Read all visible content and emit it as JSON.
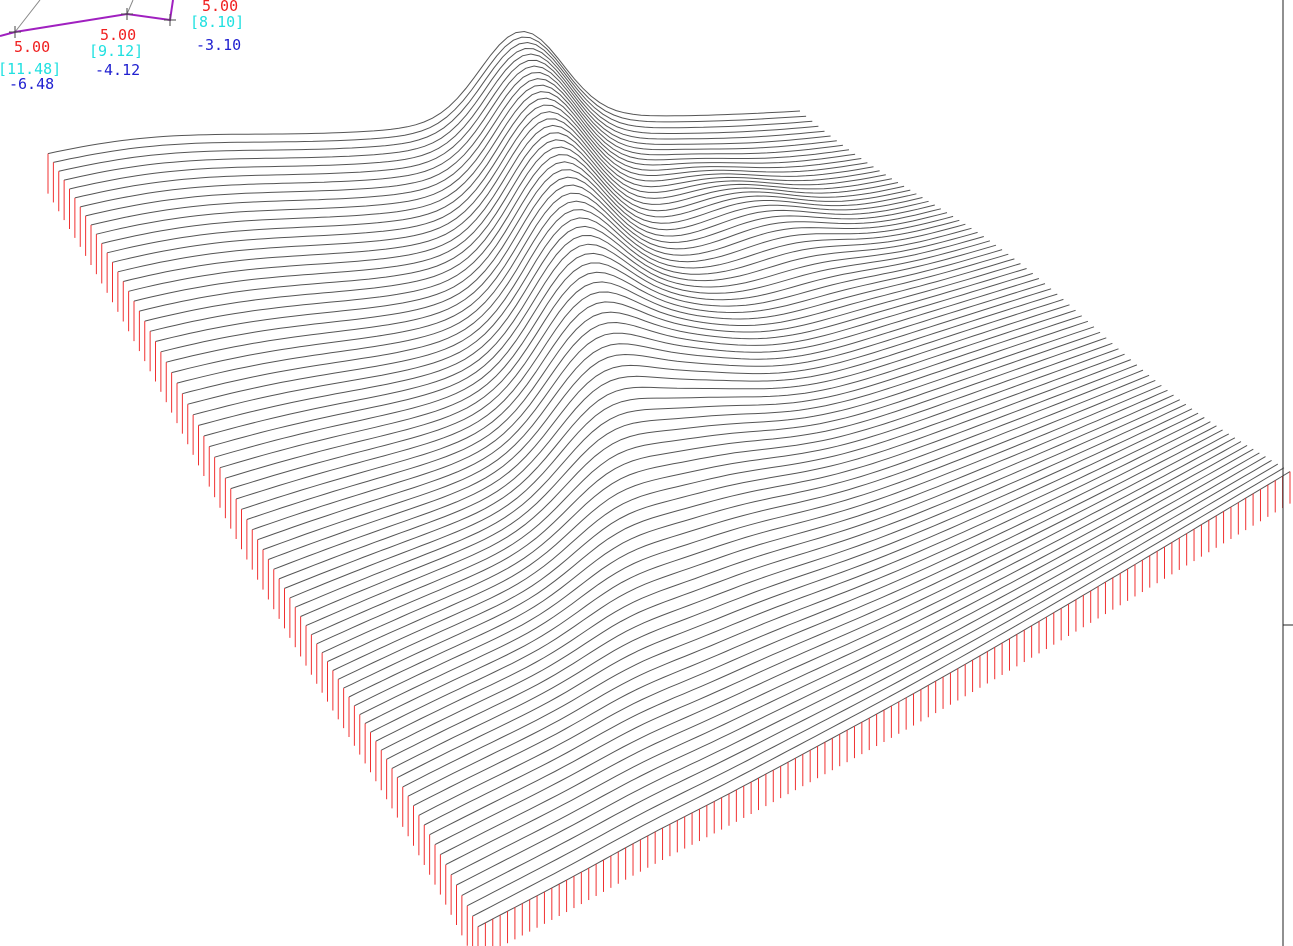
{
  "annotations": [
    {
      "value": "5.00",
      "bracket": "[8.10]",
      "offset": "-3.10"
    },
    {
      "value": "5.00",
      "bracket": "[9.12]",
      "offset": "-4.12"
    },
    {
      "value": "5.00",
      "bracket": "[11.48]",
      "offset": "-6.48"
    }
  ]
}
